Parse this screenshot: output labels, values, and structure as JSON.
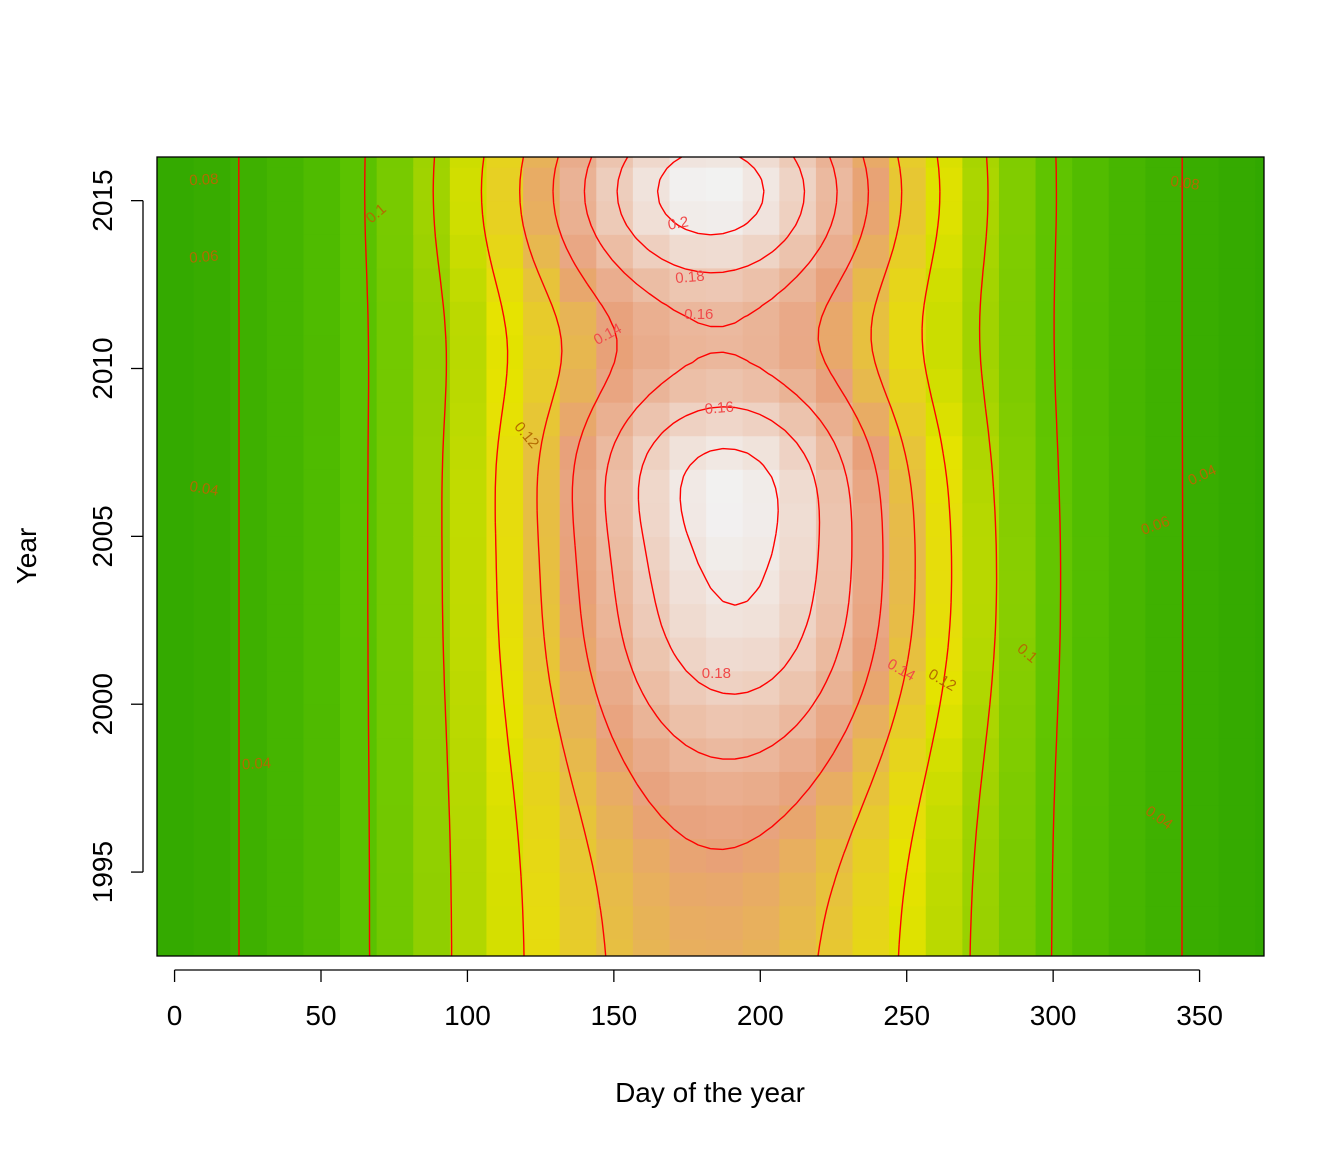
{
  "chart_data": {
    "type": "heatmap",
    "title": "",
    "xlabel": "Day of the year",
    "ylabel": "Year",
    "xlim": [
      -6,
      372
    ],
    "ylim": [
      1992.5,
      2016.3
    ],
    "x_ticks": [
      0,
      50,
      100,
      150,
      200,
      250,
      300,
      350
    ],
    "y_ticks": [
      1995,
      2000,
      2005,
      2010,
      2015
    ],
    "x_tick_labels": [
      "0",
      "50",
      "100",
      "150",
      "200",
      "250",
      "300",
      "350"
    ],
    "y_tick_labels": [
      "1995",
      "2000",
      "2005",
      "2010",
      "2015"
    ],
    "grid": false,
    "colors": {
      "low": "#1a9a00",
      "mid": "#e6e300",
      "high": "#e8a07a",
      "peak": "#f2f2f2",
      "contour": "#ff0000"
    },
    "color_scale": {
      "stops": [
        0.02,
        0.06,
        0.1,
        0.14,
        0.21
      ],
      "colors": [
        "#1a9a00",
        "#5ec400",
        "#e6e300",
        "#e8a07a",
        "#f2f2f2"
      ]
    },
    "cell_width_days": 12.5,
    "cell_height_years": 1,
    "field_model": {
      "background": 0.03,
      "peak_day": 183,
      "summer_width_days": 75,
      "summer_amplitude": 0.1,
      "bumps": [
        {
          "day": 183,
          "year": 2015.3,
          "amplitude": 0.08,
          "sd_day": 40,
          "sd_year": 2.3
        },
        {
          "day": 195,
          "year": 2003.5,
          "amplitude": 0.07,
          "sd_day": 40,
          "sd_year": 4.0
        },
        {
          "day": 185,
          "year": 2007.3,
          "amplitude": 0.03,
          "sd_day": 35,
          "sd_year": 1.8
        }
      ]
    },
    "contour_levels": [
      0.04,
      0.06,
      0.08,
      0.1,
      0.12,
      0.14,
      0.16,
      0.18,
      0.2
    ],
    "contour_labels": [
      {
        "text": "0.08",
        "day": 10,
        "year": 2015.6,
        "angle": 3
      },
      {
        "text": "0.06",
        "day": 10,
        "year": 2013.3,
        "angle": 5
      },
      {
        "text": "0.04",
        "day": 10,
        "year": 2006.4,
        "angle": -10
      },
      {
        "text": "0.04",
        "day": 28,
        "year": 1998.2,
        "angle": 3
      },
      {
        "text": "0.1",
        "day": 69,
        "year": 2014.6,
        "angle": 40
      },
      {
        "text": "0.14",
        "day": 148,
        "year": 2011.0,
        "angle": 28
      },
      {
        "text": "0.12",
        "day": 120,
        "year": 2008.0,
        "angle": -50
      },
      {
        "text": "0.2",
        "day": 172,
        "year": 2014.3,
        "angle": 10
      },
      {
        "text": "0.18",
        "day": 176,
        "year": 2012.7,
        "angle": 5
      },
      {
        "text": "0.16",
        "day": 179,
        "year": 2011.6,
        "angle": 0
      },
      {
        "text": "0.16",
        "day": 186,
        "year": 2008.8,
        "angle": 5
      },
      {
        "text": "0.18",
        "day": 185,
        "year": 2000.9,
        "angle": 0
      },
      {
        "text": "0.14",
        "day": 248,
        "year": 2001.0,
        "angle": -30
      },
      {
        "text": "0.12",
        "day": 262,
        "year": 2000.7,
        "angle": -30
      },
      {
        "text": "0.1",
        "day": 291,
        "year": 2001.5,
        "angle": -40
      },
      {
        "text": "0.06",
        "day": 335,
        "year": 2005.3,
        "angle": 20
      },
      {
        "text": "0.04",
        "day": 351,
        "year": 2006.8,
        "angle": 25
      },
      {
        "text": "0.04",
        "day": 336,
        "year": 1996.6,
        "angle": -35
      },
      {
        "text": "0.08",
        "day": 345,
        "year": 2015.5,
        "angle": -8
      }
    ]
  }
}
